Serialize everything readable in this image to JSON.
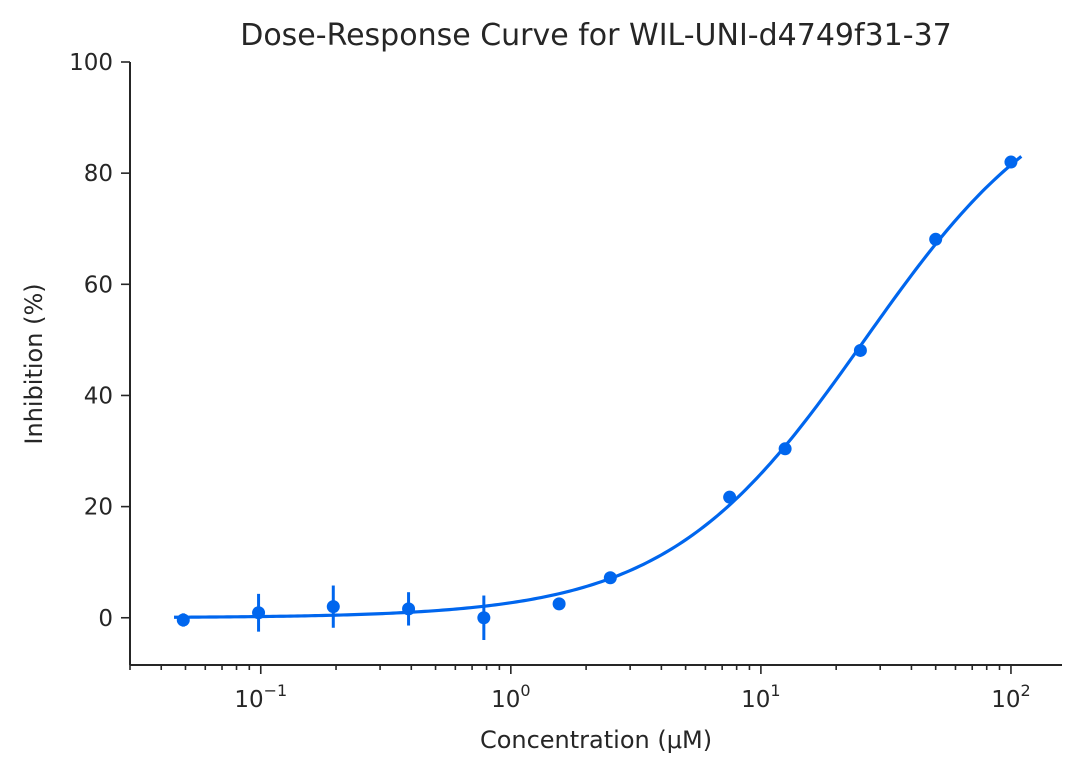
{
  "chart_data": {
    "type": "scatter",
    "title": "Dose-Response Curve for WIL-UNI-d4749f31-37",
    "xlabel": "Concentration (μM)",
    "ylabel": "Inhibition (%)",
    "xscale": "log",
    "xlim": [
      0.03,
      160
    ],
    "ylim": [
      -8.5,
      100
    ],
    "x_ticks": [
      {
        "base": "10",
        "exp": "−1",
        "value": 0.1
      },
      {
        "base": "10",
        "exp": "0",
        "value": 1
      },
      {
        "base": "10",
        "exp": "1",
        "value": 10
      },
      {
        "base": "10",
        "exp": "2",
        "value": 100
      }
    ],
    "y_ticks": [
      "0",
      "20",
      "40",
      "60",
      "80",
      "100"
    ],
    "color": "#0066ee",
    "grid": false,
    "series": [
      {
        "kind": "points_with_error",
        "x": [
          0.049,
          0.098,
          0.195,
          0.39,
          0.78,
          1.56,
          2.5,
          7.5,
          12.5,
          25,
          50,
          100
        ],
        "y": [
          -0.4,
          0.9,
          2.0,
          1.6,
          0.0,
          2.5,
          7.2,
          21.7,
          30.4,
          48.1,
          68.1,
          82.0
        ],
        "err": [
          1.2,
          3.4,
          3.8,
          3.0,
          4.0,
          0.8,
          0.6,
          0.6,
          0.5,
          0.5,
          0.6,
          0.7
        ]
      },
      {
        "kind": "fit_curve",
        "model": "4PL",
        "bottom": 0,
        "top": 100,
        "ec50": 26,
        "hill": 1.1,
        "x_range": [
          0.045,
          110
        ]
      }
    ]
  }
}
